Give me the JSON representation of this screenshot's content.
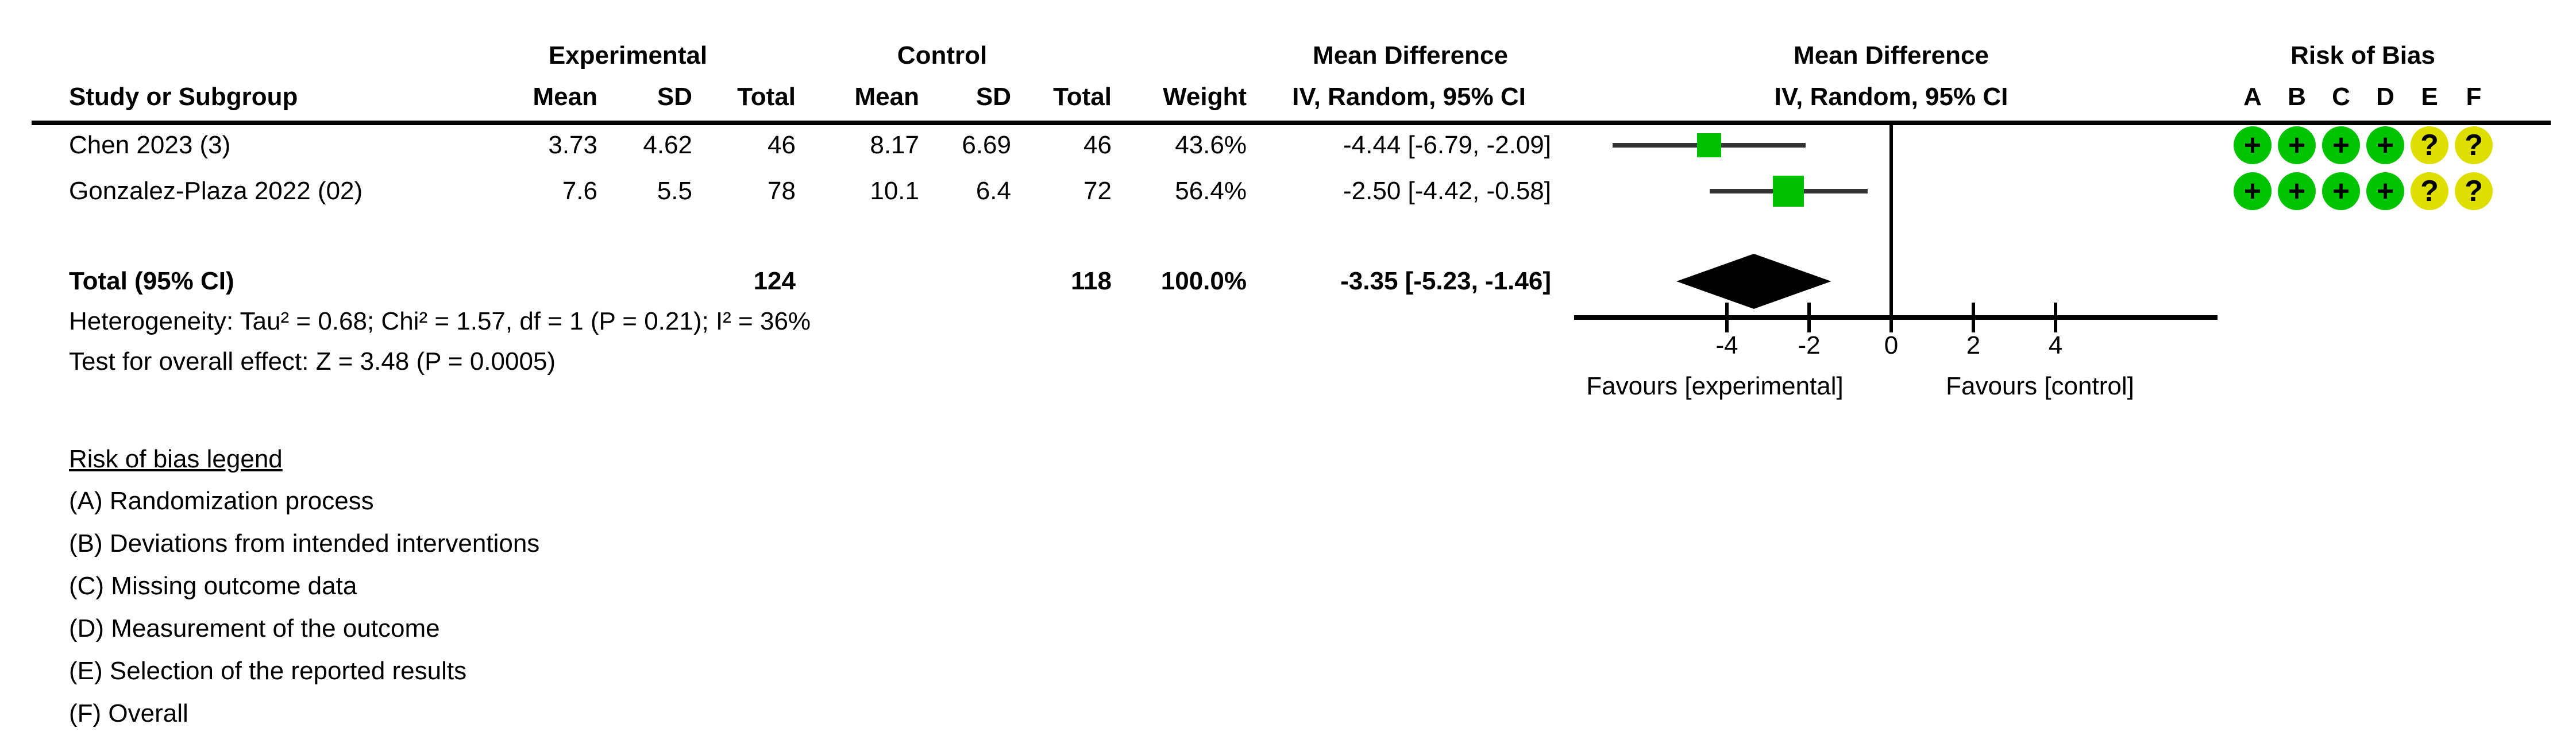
{
  "table": {
    "headers": {
      "study": "Study or Subgroup",
      "experimental_group": "Experimental",
      "control_group": "Control",
      "exp_mean": "Mean",
      "exp_sd": "SD",
      "exp_total": "Total",
      "ctrl_mean": "Mean",
      "ctrl_sd": "SD",
      "ctrl_total": "Total",
      "weight": "Weight",
      "md_text_col": "Mean Difference",
      "iv_text_col": "IV, Random, 95% CI",
      "md_plot_col": "Mean Difference",
      "iv_plot_col": "IV, Random, 95% CI"
    },
    "studies": [
      {
        "name": "Chen 2023 (3)",
        "exp_mean": "3.73",
        "exp_sd": "4.62",
        "exp_total": "46",
        "ctrl_mean": "8.17",
        "ctrl_sd": "6.69",
        "ctrl_total": "46",
        "weight": "43.6%",
        "ci_text": "-4.44 [-6.79, -2.09]"
      },
      {
        "name": "Gonzalez-Plaza 2022 (02)",
        "exp_mean": "7.6",
        "exp_sd": "5.5",
        "exp_total": "78",
        "ctrl_mean": "10.1",
        "ctrl_sd": "6.4",
        "ctrl_total": "72",
        "weight": "56.4%",
        "ci_text": "-2.50 [-4.42, -0.58]"
      }
    ],
    "total": {
      "label": "Total (95% CI)",
      "exp_total": "124",
      "ctrl_total": "118",
      "weight": "100.0%",
      "ci_text": "-3.35 [-5.23, -1.46]"
    },
    "heterogeneity": "Heterogeneity: Tau² = 0.68; Chi² = 1.57, df = 1 (P = 0.21); I² = 36%",
    "overall_effect": "Test for overall effect: Z = 3.48 (P = 0.0005)"
  },
  "chart_data": {
    "type": "forest",
    "title": "Mean Difference",
    "subtitle": "IV, Random, 95% CI",
    "effect_measure": "Mean Difference, IV, Random, 95% CI",
    "xticks": [
      -4,
      -2,
      0,
      2,
      4
    ],
    "axis_range": [
      -7.7,
      7.9
    ],
    "xlabel_left": "Favours [experimental]",
    "xlabel_right": "Favours [control]",
    "square_color": "#00c000",
    "ci_line_color": "#333333",
    "diamond_color": "#000000",
    "studies": [
      {
        "name": "Chen 2023 (3)",
        "md": -4.44,
        "ci_low": -6.79,
        "ci_high": -2.09,
        "weight_pct": 43.6
      },
      {
        "name": "Gonzalez-Plaza 2022 (02)",
        "md": -2.5,
        "ci_low": -4.42,
        "ci_high": -0.58,
        "weight_pct": 56.4
      }
    ],
    "total": {
      "md": -3.35,
      "ci_low": -5.23,
      "ci_high": -1.46,
      "weight_pct": 100.0
    }
  },
  "risk_of_bias": {
    "title": "Risk of Bias",
    "columns": [
      "A",
      "B",
      "C",
      "D",
      "E",
      "F"
    ],
    "low_color": "#00c300",
    "unclear_color": "#dede00",
    "rows": [
      {
        "study": "Chen 2023 (3)",
        "judgements": [
          {
            "symbol": "+",
            "color": "#00c300"
          },
          {
            "symbol": "+",
            "color": "#00c300"
          },
          {
            "symbol": "+",
            "color": "#00c300"
          },
          {
            "symbol": "+",
            "color": "#00c300"
          },
          {
            "symbol": "?",
            "color": "#dede00"
          },
          {
            "symbol": "?",
            "color": "#dede00"
          }
        ]
      },
      {
        "study": "Gonzalez-Plaza 2022 (02)",
        "judgements": [
          {
            "symbol": "+",
            "color": "#00c300"
          },
          {
            "symbol": "+",
            "color": "#00c300"
          },
          {
            "symbol": "+",
            "color": "#00c300"
          },
          {
            "symbol": "+",
            "color": "#00c300"
          },
          {
            "symbol": "?",
            "color": "#dede00"
          },
          {
            "symbol": "?",
            "color": "#dede00"
          }
        ]
      }
    ]
  },
  "legend": {
    "title": "Risk of bias legend",
    "items": [
      "(A) Randomization process",
      "(B) Deviations from intended interventions",
      "(C) Missing outcome data",
      "(D) Measurement of the outcome",
      "(E) Selection of the reported results",
      "(F) Overall"
    ]
  }
}
